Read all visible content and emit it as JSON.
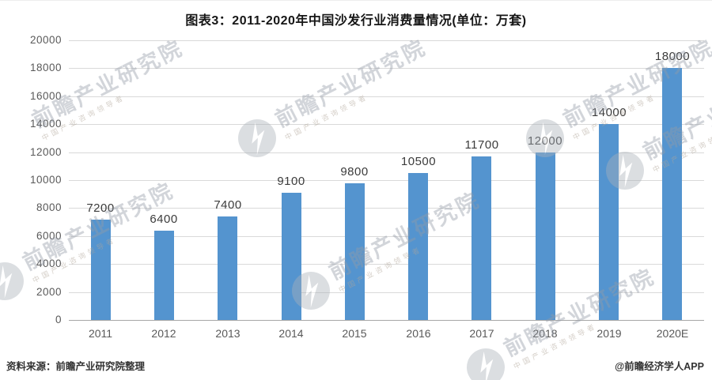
{
  "title": "图表3：2011-2020年中国沙发行业消费量情况(单位：万套)",
  "chart_data": {
    "type": "bar",
    "title": "图表3：2011-2020年中国沙发行业消费量情况(单位：万套)",
    "categories": [
      "2011",
      "2012",
      "2013",
      "2014",
      "2015",
      "2016",
      "2017",
      "2018",
      "2019",
      "2020E"
    ],
    "values": [
      7200,
      6400,
      7400,
      9100,
      9800,
      10500,
      11700,
      12000,
      14000,
      18000
    ],
    "xlabel": "",
    "ylabel": "",
    "unit": "万套",
    "ylim": [
      0,
      20000
    ],
    "ytick_step": 2000,
    "grid": true,
    "legend": "none",
    "bar_color": "#5494CF",
    "gridline_color": "#d9d9d9",
    "axis_line_color": "#a6a6a6",
    "label_color": "#3b3b3b",
    "tick_color": "#595959"
  },
  "watermark": {
    "logo_icon": "qianzhan-swoosh-logo-icon",
    "text": "前瞻产业研究院",
    "subtext": "中国产业咨询领导者"
  },
  "footer": {
    "source": "资料来源：前瞻产业研究院整理",
    "credit": "@前瞻经济学人APP"
  }
}
